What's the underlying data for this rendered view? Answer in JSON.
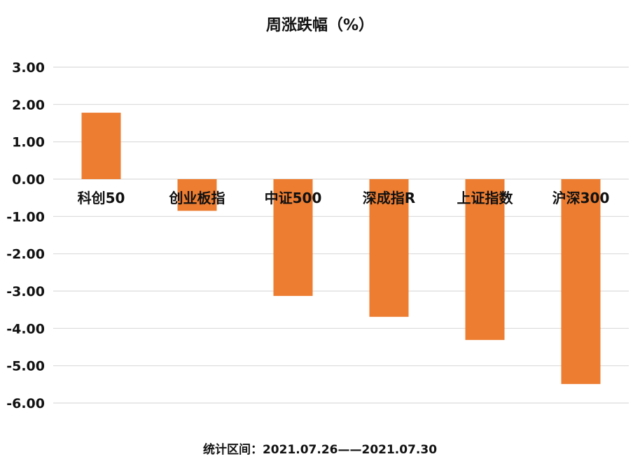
{
  "chart_data": {
    "type": "bar",
    "title": "周涨跌幅（%）",
    "categories": [
      "科创50",
      "创业板指",
      "中证500",
      "深成指R",
      "上证指数",
      "沪深300"
    ],
    "series": [
      {
        "values": [
          1.78,
          -0.85,
          -3.13,
          -3.69,
          -4.31,
          -5.49
        ]
      }
    ],
    "ylim": [
      -6,
      3
    ],
    "yticks": [
      3,
      2,
      1,
      0,
      -1,
      -2,
      -3,
      -4,
      -5,
      -6
    ],
    "ytick_labels": [
      "3.00",
      "2.00",
      "1.00",
      "0.00",
      "-1.00",
      "-2.00",
      "-3.00",
      "-4.00",
      "-5.00",
      "-6.00"
    ],
    "grid": true,
    "legend": "none",
    "bar_color": "#ED7D31",
    "grid_color": "#D9D9D9"
  },
  "footer": "统计区间：2021.07.26——2021.07.30"
}
